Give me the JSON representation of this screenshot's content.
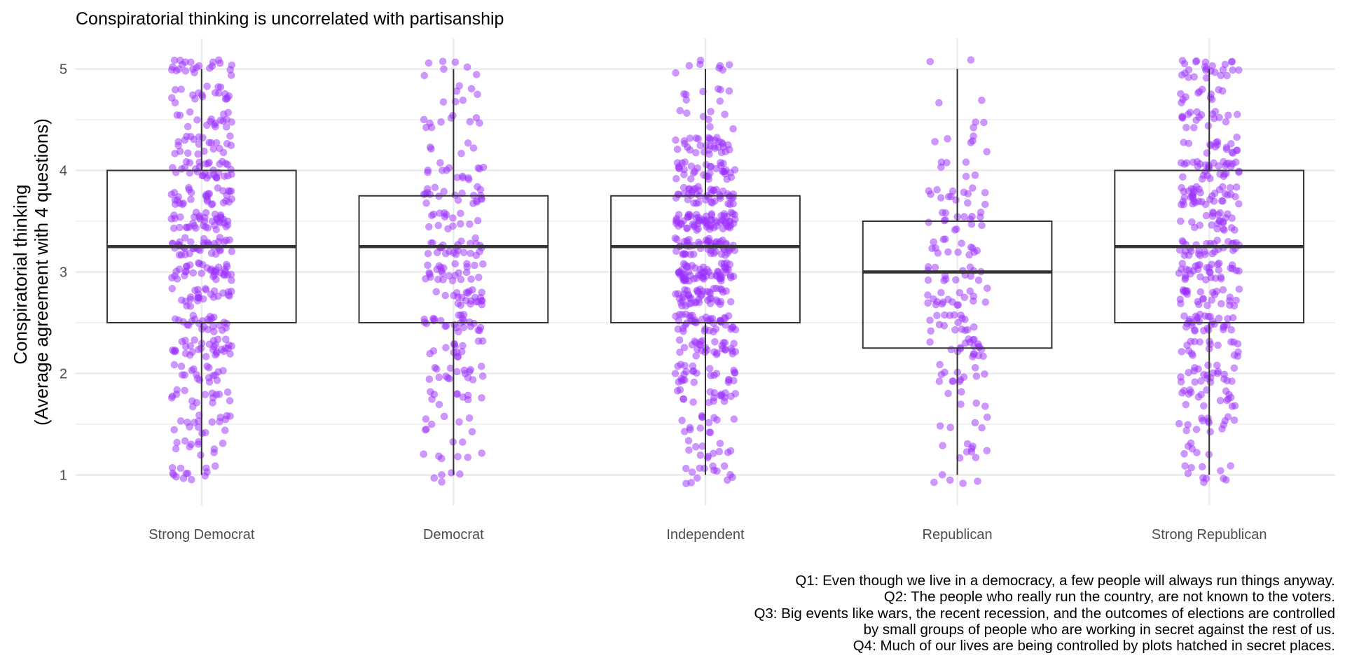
{
  "chart_data": {
    "type": "box",
    "title": "Conspiratorial thinking is uncorrelated with partisanship",
    "ylabel_line1": "Conspiratorial thinking",
    "ylabel_line2": "(Average agreement with 4 questions)",
    "xlabel": "",
    "ylim": [
      0.7,
      5.3
    ],
    "yticks": [
      1,
      2,
      3,
      4,
      5
    ],
    "grid": true,
    "legend": "none",
    "colors": {
      "points": "#9B30FF",
      "box_line": "#333333",
      "grid": "#ebebeb",
      "axis_text": "#4d4d4d"
    },
    "categories": [
      "Strong Democrat",
      "Democrat",
      "Independent",
      "Republican",
      "Strong Republican"
    ],
    "boxes": [
      {
        "category": "Strong Democrat",
        "min": 1,
        "q1": 2.5,
        "median": 3.25,
        "q3": 4.0,
        "max": 5,
        "n_points": 420
      },
      {
        "category": "Democrat",
        "min": 1,
        "q1": 2.5,
        "median": 3.25,
        "q3": 3.75,
        "max": 5,
        "n_points": 240
      },
      {
        "category": "Independent",
        "min": 1,
        "q1": 2.5,
        "median": 3.25,
        "q3": 3.75,
        "max": 5,
        "n_points": 520
      },
      {
        "category": "Republican",
        "min": 1,
        "q1": 2.25,
        "median": 3.0,
        "q3": 3.5,
        "max": 5,
        "n_points": 170
      },
      {
        "category": "Strong Republican",
        "min": 1,
        "q1": 2.5,
        "median": 3.25,
        "q3": 4.0,
        "max": 5,
        "n_points": 380
      }
    ],
    "caption_lines": [
      "Q1: Even though we live in a democracy, a few people will always run things anyway.",
      "Q2: The people who really run the country, are not known to the voters.",
      "Q3: Big events like wars, the recent recession, and the outcomes of elections are controlled",
      "by small groups of people who are working in secret against the rest of us.",
      "Q4: Much of our lives are being controlled by plots hatched in secret places."
    ]
  }
}
